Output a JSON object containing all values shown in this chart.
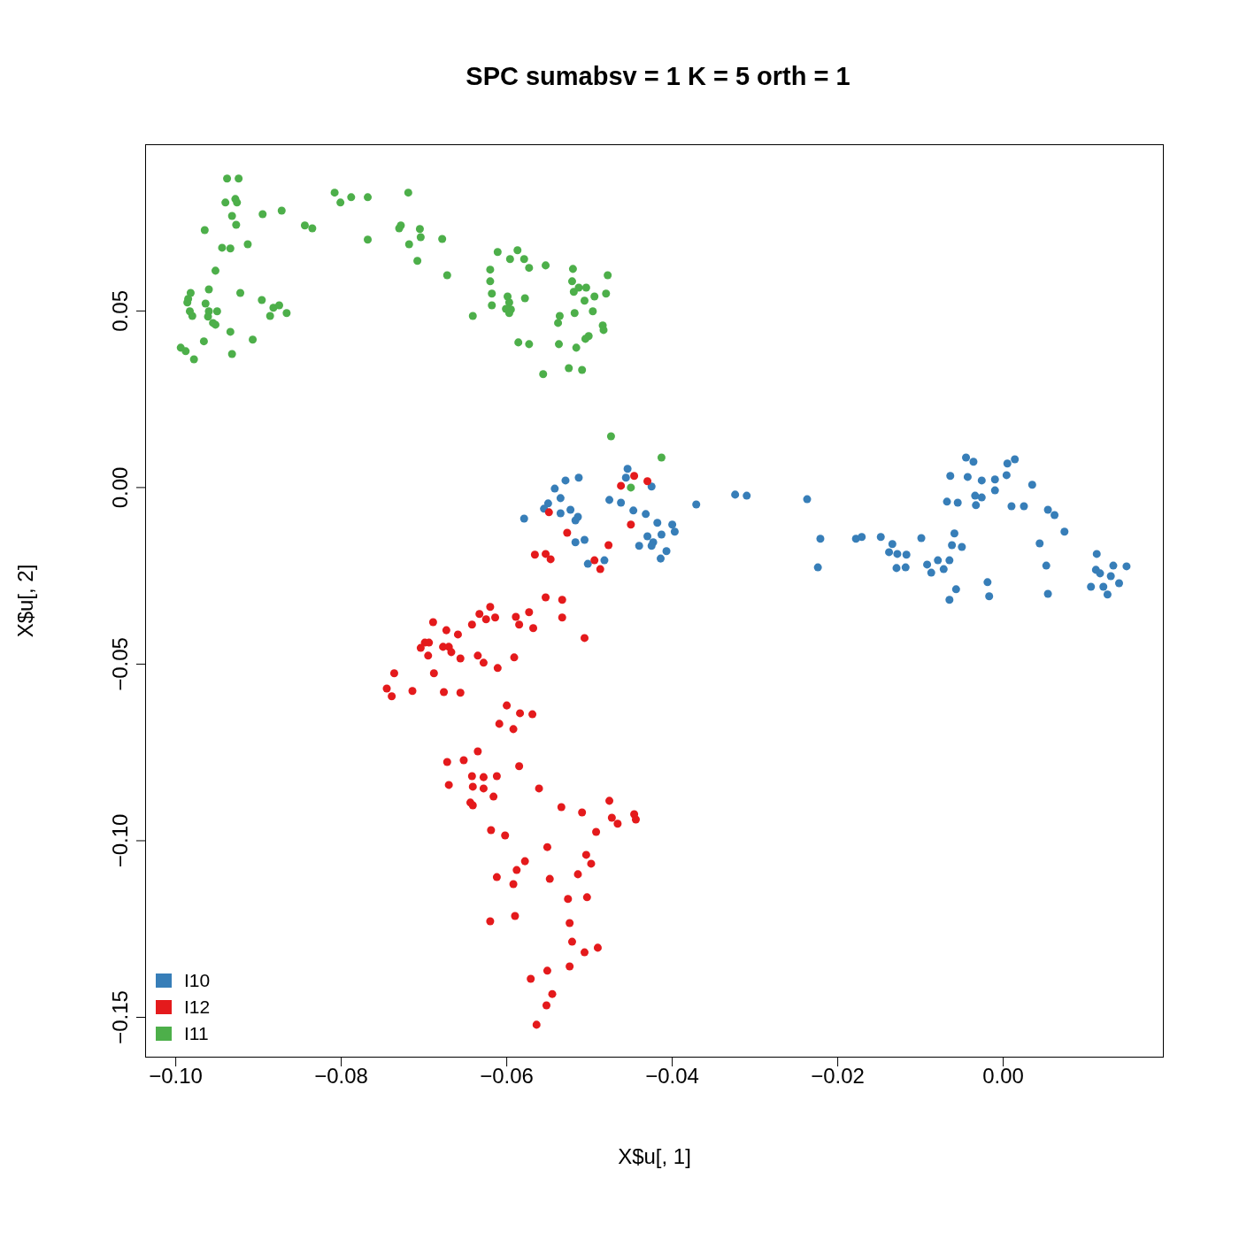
{
  "chart_data": {
    "type": "scatter",
    "title": "SPC sumabsv = 1 K = 5 orth =  1",
    "xlabel": "X$u[, 1]",
    "ylabel": "X$u[, 2]",
    "xlim": [
      -0.1037,
      0.0194
    ],
    "ylim": [
      -0.1614,
      0.0972
    ],
    "xticks": [
      {
        "value": -0.1,
        "label": "−0.10"
      },
      {
        "value": -0.08,
        "label": "−0.08"
      },
      {
        "value": -0.06,
        "label": "−0.06"
      },
      {
        "value": -0.04,
        "label": "−0.04"
      },
      {
        "value": -0.02,
        "label": "−0.02"
      },
      {
        "value": 0,
        "label": "0.00"
      }
    ],
    "yticks": [
      {
        "value": -0.15,
        "label": "−0.15"
      },
      {
        "value": -0.1,
        "label": "−0.10"
      },
      {
        "value": -0.05,
        "label": "−0.05"
      },
      {
        "value": 0,
        "label": "0.00"
      },
      {
        "value": 0.05,
        "label": "0.05"
      }
    ],
    "grid": false,
    "legend": "bottom left",
    "marker": "circle",
    "series": [
      {
        "name": "I10",
        "color": "#377eb8",
        "x": [
          -0.0454,
          -0.0456,
          -0.0425,
          -0.0513,
          -0.0529,
          -0.0542,
          -0.0535,
          -0.055,
          -0.0555,
          -0.0579,
          -0.0535,
          -0.0523,
          -0.0514,
          -0.0517,
          -0.0476,
          -0.0462,
          -0.0447,
          -0.0432,
          -0.0418,
          -0.04,
          -0.0397,
          -0.0413,
          -0.043,
          -0.0423,
          -0.0425,
          -0.044,
          -0.0407,
          -0.0414,
          -0.0517,
          -0.0506,
          -0.0502,
          -0.0482,
          -0.0371,
          -0.0324,
          -0.031,
          -0.0237,
          -0.0221,
          -0.0224,
          -0.0178,
          -0.0171,
          -0.0148,
          -0.0134,
          -0.0138,
          -0.0128,
          -0.0117,
          -0.0129,
          -0.0118,
          -0.0099,
          -0.0092,
          -0.0087,
          -0.0079,
          -0.0072,
          -0.0065,
          -0.0059,
          -0.0062,
          -0.005,
          -0.0057,
          -0.0065,
          -0.0019,
          -0.0017,
          -0.0045,
          -0.0036,
          -0.0064,
          -0.0043,
          -0.0026,
          -0.001,
          -0.001,
          -0.0034,
          -0.0026,
          -0.0033,
          -0.0068,
          -0.0055,
          0.0005,
          0.0014,
          0.0004,
          0.0035,
          0.001,
          0.0025,
          0.0054,
          0.0062,
          0.0074,
          0.0044,
          0.0052,
          0.0054,
          0.0113,
          0.0112,
          0.0117,
          0.0133,
          0.0149,
          0.013,
          0.014,
          0.0106,
          0.0121,
          0.0126
        ],
        "values": [
          0.0053,
          0.0028,
          0.0003,
          0.0028,
          0.002,
          -0.0003,
          -0.003,
          -0.0045,
          -0.006,
          -0.0088,
          -0.0073,
          -0.0063,
          -0.0083,
          -0.0093,
          -0.0035,
          -0.0043,
          -0.0065,
          -0.0075,
          -0.01,
          -0.0105,
          -0.0125,
          -0.0133,
          -0.0138,
          -0.0155,
          -0.0165,
          -0.0165,
          -0.018,
          -0.0201,
          -0.0155,
          -0.0148,
          -0.0216,
          -0.0206,
          -0.0048,
          -0.002,
          -0.0023,
          -0.0033,
          -0.0145,
          -0.0226,
          -0.0145,
          -0.014,
          -0.014,
          -0.016,
          -0.0183,
          -0.0188,
          -0.019,
          -0.0228,
          -0.0226,
          -0.0143,
          -0.0218,
          -0.0241,
          -0.0206,
          -0.0231,
          -0.0206,
          -0.013,
          -0.0163,
          -0.0168,
          -0.0288,
          -0.0318,
          -0.0268,
          -0.0308,
          0.0085,
          0.0073,
          0.0033,
          0.003,
          0.002,
          0.0023,
          -0.0008,
          -0.0023,
          -0.0028,
          -0.005,
          -0.004,
          -0.0043,
          0.0068,
          0.008,
          0.0035,
          0.0008,
          -0.0053,
          -0.0053,
          -0.0063,
          -0.0078,
          -0.0125,
          -0.0158,
          -0.0221,
          -0.0301,
          -0.0188,
          -0.0233,
          -0.0243,
          -0.0221,
          -0.0223,
          -0.0251,
          -0.0271,
          -0.0281,
          -0.0281,
          -0.0303
        ]
      },
      {
        "name": "I12",
        "color": "#e41a1c",
        "x": [
          -0.0446,
          -0.043,
          -0.0462,
          -0.0549,
          -0.0527,
          -0.045,
          -0.0477,
          -0.0566,
          -0.0553,
          -0.0547,
          -0.0494,
          -0.0487,
          -0.0553,
          -0.0533,
          -0.062,
          -0.0633,
          -0.0625,
          -0.0614,
          -0.0589,
          -0.0573,
          -0.0585,
          -0.0568,
          -0.0533,
          -0.0506,
          -0.0689,
          -0.0642,
          -0.0673,
          -0.0659,
          -0.0699,
          -0.0694,
          -0.0704,
          -0.0695,
          -0.0677,
          -0.067,
          -0.0667,
          -0.0656,
          -0.0635,
          -0.0628,
          -0.0611,
          -0.0591,
          -0.0736,
          -0.0688,
          -0.0745,
          -0.0739,
          -0.0714,
          -0.0676,
          -0.0656,
          -0.06,
          -0.0584,
          -0.0569,
          -0.0609,
          -0.0592,
          -0.0635,
          -0.0672,
          -0.0652,
          -0.0585,
          -0.0642,
          -0.0628,
          -0.0612,
          -0.067,
          -0.0641,
          -0.0628,
          -0.0561,
          -0.0616,
          -0.0644,
          -0.0641,
          -0.0534,
          -0.0509,
          -0.0476,
          -0.0473,
          -0.0466,
          -0.0446,
          -0.0444,
          -0.0492,
          -0.0619,
          -0.0602,
          -0.0551,
          -0.0578,
          -0.0588,
          -0.0612,
          -0.0592,
          -0.0548,
          -0.0504,
          -0.0498,
          -0.0514,
          -0.0526,
          -0.0503,
          -0.062,
          -0.059,
          -0.0524,
          -0.0521,
          -0.0506,
          -0.049,
          -0.0524,
          -0.0551,
          -0.0571,
          -0.0545,
          -0.0552,
          -0.0564
        ],
        "values": [
          0.0033,
          0.0018,
          0.0005,
          -0.007,
          -0.0128,
          -0.0105,
          -0.0163,
          -0.019,
          -0.0188,
          -0.0203,
          -0.0206,
          -0.0231,
          -0.0311,
          -0.0318,
          -0.0338,
          -0.0358,
          -0.0373,
          -0.0368,
          -0.0366,
          -0.0353,
          -0.0388,
          -0.0398,
          -0.0368,
          -0.0426,
          -0.0381,
          -0.0388,
          -0.0404,
          -0.0416,
          -0.0439,
          -0.0439,
          -0.0454,
          -0.0476,
          -0.0451,
          -0.0451,
          -0.0466,
          -0.0484,
          -0.0476,
          -0.0496,
          -0.0511,
          -0.0481,
          -0.0526,
          -0.0526,
          -0.0569,
          -0.0591,
          -0.0576,
          -0.0579,
          -0.0581,
          -0.0617,
          -0.0639,
          -0.0642,
          -0.0669,
          -0.0684,
          -0.0747,
          -0.0777,
          -0.0772,
          -0.0789,
          -0.0817,
          -0.082,
          -0.0817,
          -0.0842,
          -0.0847,
          -0.0852,
          -0.0852,
          -0.0875,
          -0.0892,
          -0.09,
          -0.0905,
          -0.092,
          -0.0887,
          -0.0935,
          -0.0952,
          -0.0925,
          -0.094,
          -0.0975,
          -0.097,
          -0.0985,
          -0.1018,
          -0.1058,
          -0.1083,
          -0.1103,
          -0.1123,
          -0.1108,
          -0.104,
          -0.1065,
          -0.1095,
          -0.1165,
          -0.116,
          -0.1228,
          -0.1213,
          -0.1233,
          -0.1286,
          -0.1316,
          -0.1303,
          -0.1356,
          -0.1368,
          -0.1391,
          -0.1434,
          -0.1466,
          -0.1521
        ]
      },
      {
        "name": "I11",
        "color": "#4daf4a",
        "x": [
          -0.0938,
          -0.0924,
          -0.094,
          -0.0928,
          -0.0926,
          -0.0932,
          -0.0927,
          -0.0965,
          -0.0913,
          -0.0895,
          -0.0872,
          -0.0944,
          -0.0934,
          -0.0844,
          -0.0835,
          -0.0808,
          -0.0801,
          -0.0788,
          -0.0768,
          -0.0719,
          -0.0768,
          -0.073,
          -0.0728,
          -0.0705,
          -0.0704,
          -0.0718,
          -0.0678,
          -0.0708,
          -0.0672,
          -0.0952,
          -0.0982,
          -0.0985,
          -0.096,
          -0.0922,
          -0.0986,
          -0.0964,
          -0.0983,
          -0.096,
          -0.098,
          -0.095,
          -0.0952,
          -0.0961,
          -0.0955,
          -0.0896,
          -0.0882,
          -0.0875,
          -0.0886,
          -0.0866,
          -0.0934,
          -0.0907,
          -0.0966,
          -0.0994,
          -0.0988,
          -0.0978,
          -0.0932,
          -0.0611,
          -0.0587,
          -0.0596,
          -0.0579,
          -0.0573,
          -0.062,
          -0.0553,
          -0.062,
          -0.0618,
          -0.0599,
          -0.0641,
          -0.0618,
          -0.0597,
          -0.0595,
          -0.0601,
          -0.0597,
          -0.0578,
          -0.052,
          -0.0478,
          -0.0521,
          -0.0494,
          -0.0519,
          -0.0513,
          -0.0504,
          -0.0506,
          -0.048,
          -0.0518,
          -0.0496,
          -0.0536,
          -0.0538,
          -0.0484,
          -0.0483,
          -0.0501,
          -0.0505,
          -0.0586,
          -0.0573,
          -0.0537,
          -0.0516,
          -0.0525,
          -0.0509,
          -0.0556,
          -0.0474,
          -0.0413,
          -0.045
        ],
        "values": [
          0.0875,
          0.0875,
          0.0807,
          0.0817,
          0.0807,
          0.0769,
          0.0744,
          0.0729,
          0.0689,
          0.0774,
          0.0784,
          0.0679,
          0.0677,
          0.0742,
          0.0734,
          0.0835,
          0.0807,
          0.0822,
          0.0822,
          0.0835,
          0.0702,
          0.0734,
          0.0742,
          0.0732,
          0.0709,
          0.0689,
          0.0704,
          0.0642,
          0.0601,
          0.0614,
          0.0551,
          0.0534,
          0.0561,
          0.0551,
          0.0524,
          0.0521,
          0.0499,
          0.0499,
          0.0486,
          0.0499,
          0.0461,
          0.0484,
          0.0466,
          0.0531,
          0.0509,
          0.0516,
          0.0486,
          0.0494,
          0.0441,
          0.0419,
          0.0414,
          0.0396,
          0.0386,
          0.0363,
          0.0378,
          0.0667,
          0.0672,
          0.0647,
          0.0647,
          0.0622,
          0.0617,
          0.0629,
          0.0584,
          0.0549,
          0.0541,
          0.0486,
          0.0516,
          0.0524,
          0.0504,
          0.0506,
          0.0494,
          0.0536,
          0.0619,
          0.0601,
          0.0584,
          0.0541,
          0.0554,
          0.0566,
          0.0566,
          0.0529,
          0.0549,
          0.0494,
          0.0499,
          0.0486,
          0.0466,
          0.0459,
          0.0446,
          0.0429,
          0.0421,
          0.0411,
          0.0406,
          0.0406,
          0.0396,
          0.0338,
          0.0333,
          0.0321,
          0.0145,
          0.0085,
          0.0
        ]
      }
    ]
  }
}
